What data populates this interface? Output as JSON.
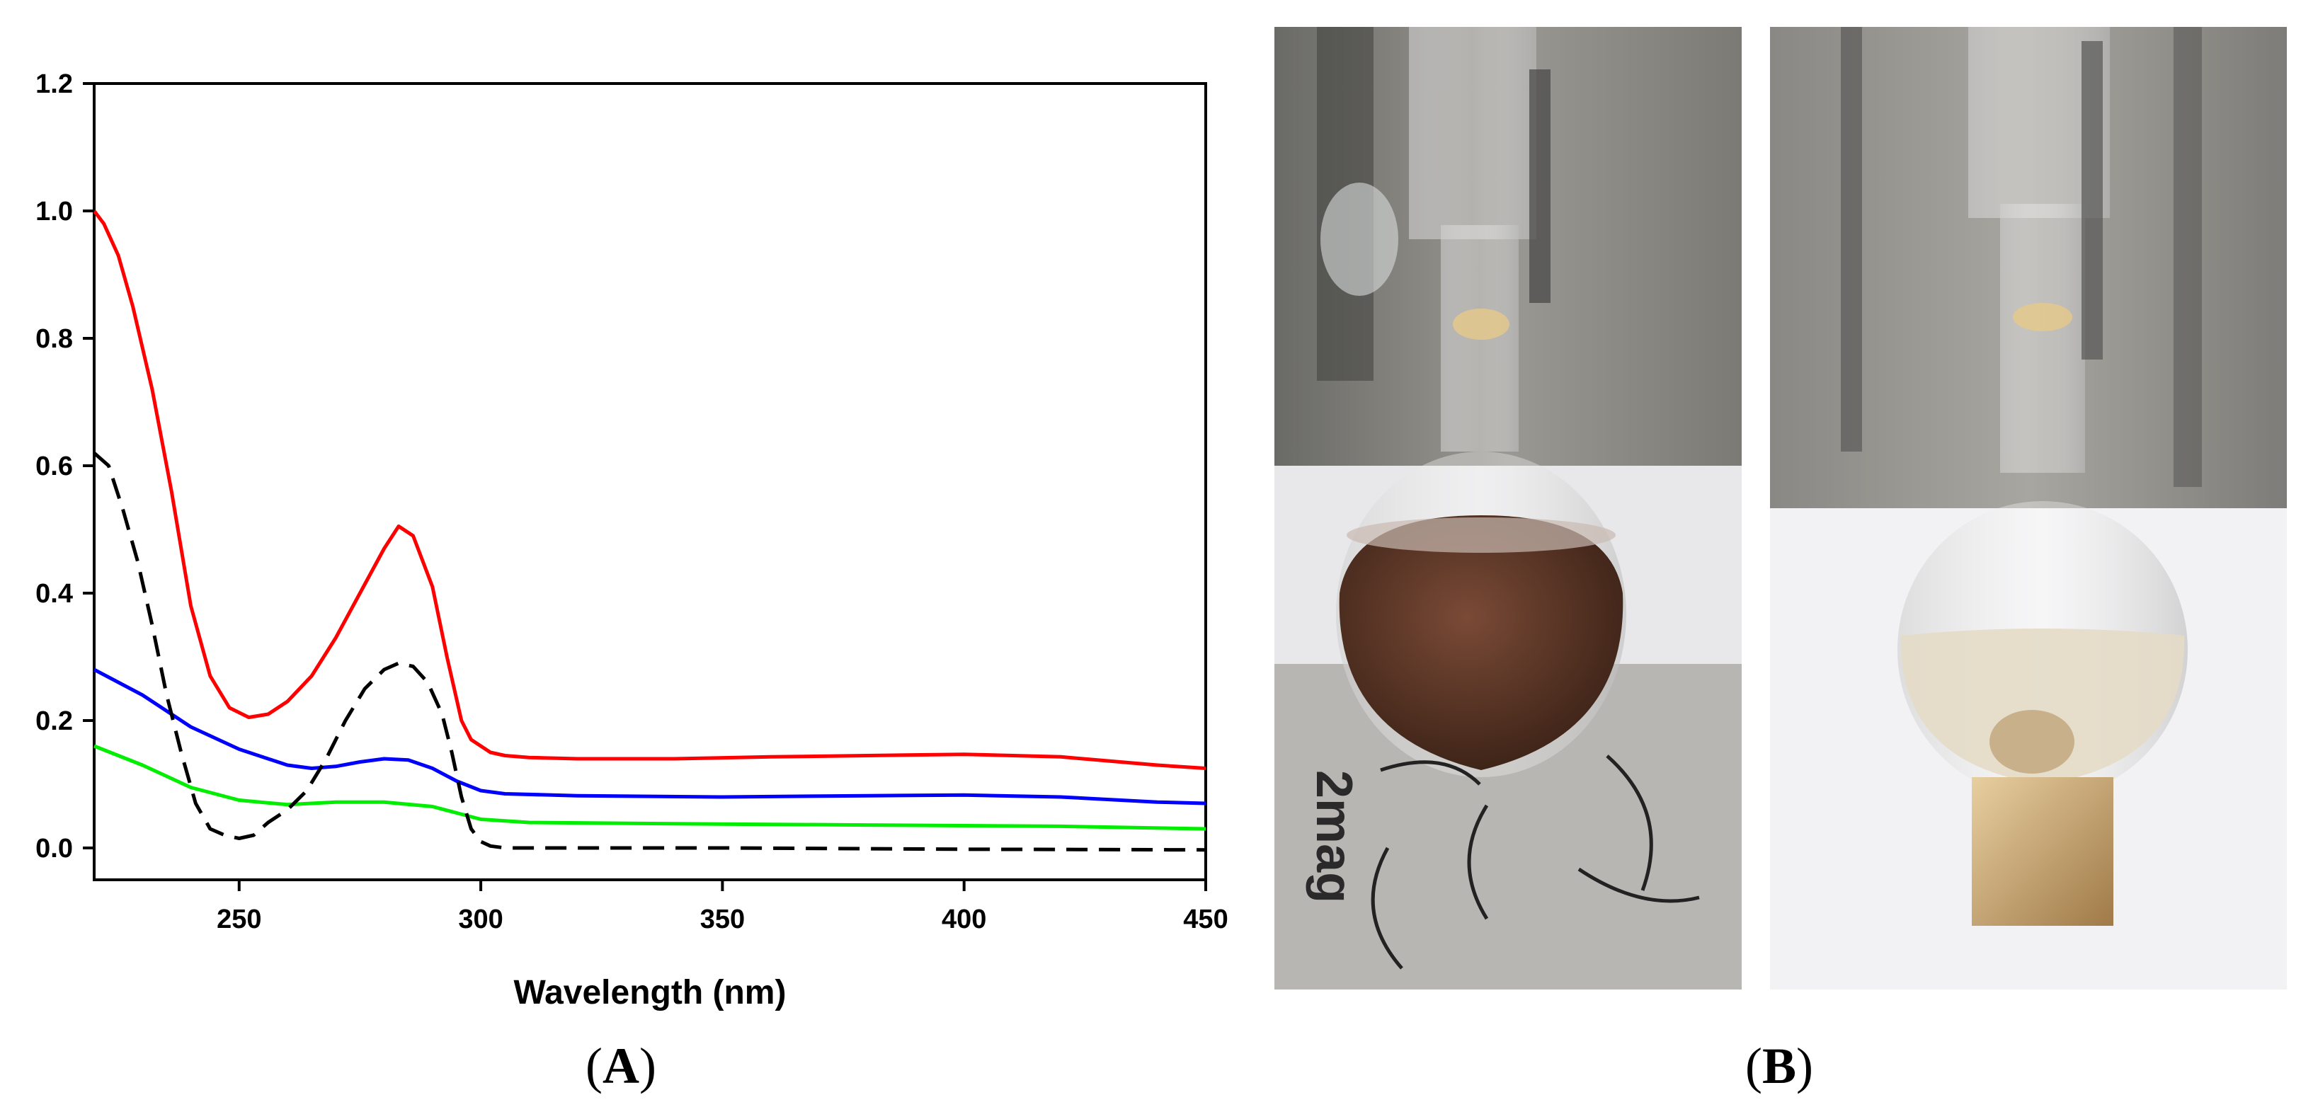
{
  "panels": {
    "a": {
      "prefix": "(",
      "letter": "A",
      "suffix": ")"
    },
    "b": {
      "prefix": "(",
      "letter": "B",
      "suffix": ")"
    }
  },
  "photos": {
    "left": {
      "stand_text": "2mag"
    },
    "right": {}
  },
  "chart_data": {
    "type": "line",
    "title": "",
    "xlabel": "Wavelength (nm)",
    "ylabel": "",
    "xlim": [
      220,
      450
    ],
    "ylim": [
      -0.05,
      1.2
    ],
    "xticks": [
      250,
      300,
      350,
      400,
      450
    ],
    "xtick_labels": [
      "250",
      "300",
      "350",
      "400",
      "450"
    ],
    "yticks": [
      0.0,
      0.2,
      0.4,
      0.6,
      0.8,
      1.0,
      1.2
    ],
    "ytick_labels": [
      "0.0",
      "0.2",
      "0.4",
      "0.6",
      "0.8",
      "1.0",
      "1.2"
    ],
    "grid": false,
    "series": [
      {
        "color": "#ff0000",
        "dash": "solid",
        "x": [
          220,
          222,
          225,
          228,
          232,
          236,
          240,
          244,
          248,
          252,
          256,
          260,
          265,
          270,
          275,
          280,
          283,
          286,
          290,
          293,
          296,
          298,
          300,
          302,
          305,
          310,
          320,
          340,
          360,
          380,
          400,
          420,
          440,
          450
        ],
        "y": [
          1.0,
          0.98,
          0.93,
          0.85,
          0.72,
          0.56,
          0.38,
          0.27,
          0.22,
          0.205,
          0.21,
          0.23,
          0.27,
          0.33,
          0.4,
          0.47,
          0.505,
          0.49,
          0.41,
          0.3,
          0.2,
          0.17,
          0.16,
          0.15,
          0.145,
          0.142,
          0.14,
          0.14,
          0.143,
          0.145,
          0.147,
          0.143,
          0.13,
          0.125
        ]
      },
      {
        "color": "#0000ff",
        "dash": "solid",
        "x": [
          220,
          230,
          240,
          250,
          260,
          265,
          270,
          275,
          280,
          285,
          290,
          295,
          300,
          305,
          320,
          350,
          380,
          400,
          420,
          440,
          450
        ],
        "y": [
          0.28,
          0.24,
          0.19,
          0.155,
          0.13,
          0.125,
          0.128,
          0.135,
          0.14,
          0.138,
          0.125,
          0.105,
          0.09,
          0.085,
          0.082,
          0.08,
          0.082,
          0.083,
          0.08,
          0.072,
          0.07
        ]
      },
      {
        "color": "#00ee00",
        "dash": "solid",
        "x": [
          220,
          230,
          240,
          250,
          260,
          270,
          280,
          290,
          295,
          300,
          310,
          340,
          380,
          420,
          450
        ],
        "y": [
          0.16,
          0.13,
          0.095,
          0.075,
          0.068,
          0.072,
          0.072,
          0.065,
          0.055,
          0.045,
          0.04,
          0.038,
          0.036,
          0.034,
          0.03
        ]
      },
      {
        "color": "#000000",
        "dash": "dashed",
        "x": [
          220,
          223,
          226,
          229,
          232,
          235,
          238,
          241,
          244,
          247,
          250,
          253,
          256,
          260,
          264,
          268,
          272,
          276,
          280,
          283,
          286,
          289,
          292,
          294,
          296,
          298,
          300,
          302,
          305,
          310,
          350,
          400,
          450
        ],
        "y": [
          0.62,
          0.6,
          0.53,
          0.45,
          0.35,
          0.24,
          0.15,
          0.07,
          0.03,
          0.02,
          0.015,
          0.02,
          0.04,
          0.06,
          0.09,
          0.14,
          0.2,
          0.25,
          0.28,
          0.29,
          0.285,
          0.26,
          0.21,
          0.15,
          0.08,
          0.03,
          0.01,
          0.003,
          0.0,
          0.0,
          0.0,
          -0.002,
          -0.003
        ]
      }
    ]
  }
}
